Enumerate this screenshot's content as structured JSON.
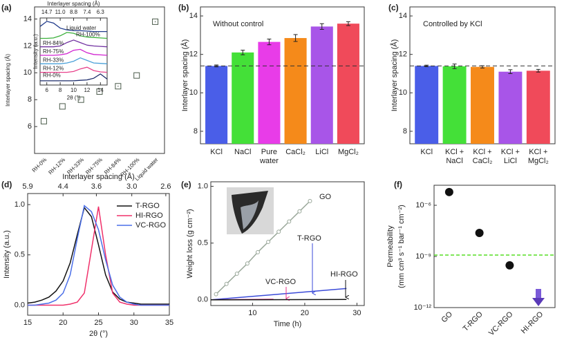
{
  "chart_data": [
    {
      "panel_label": "(a)",
      "type": "scatter",
      "ylabel": "Interlayer spacing (Å)",
      "categories": [
        "RH-0%",
        "RH-12%",
        "RH-33%",
        "RH-75%",
        "RH-84%",
        "RH-100%",
        "Liquid water"
      ],
      "values": [
        6.4,
        7.5,
        8.0,
        8.6,
        9.0,
        9.8,
        13.8
      ],
      "errors": [
        0.15,
        0.15,
        0.15,
        0.15,
        0.2,
        0.15,
        0.2
      ],
      "color": "#4a5a4a",
      "ylim": [
        4,
        14.9
      ],
      "yticks": [
        6,
        8,
        10,
        12,
        14
      ],
      "inset": {
        "type": "line",
        "xlabel": "2θ (°)",
        "ylabel": "Intensity (a.u.)",
        "x2label": "Interlayer spacing (Å)",
        "xlim": [
          5,
          15
        ],
        "xticks": [
          6,
          8,
          10,
          12,
          14
        ],
        "x2ticks": [
          {
            "value": 6,
            "label": "14.7"
          },
          {
            "value": 8,
            "label": "11.0"
          },
          {
            "value": 10,
            "label": "8.8"
          },
          {
            "value": 12,
            "label": "7.4"
          },
          {
            "value": 14,
            "label": "6.3"
          }
        ],
        "ylim": [
          0.5,
          8.4
        ],
        "x": [
          5,
          6,
          7,
          8,
          9,
          10,
          11,
          12,
          13,
          14,
          15
        ],
        "series": [
          {
            "name": "Liquid water",
            "color": "#1f3a8a",
            "values": [
              7.4,
              8.0,
              7.8,
              7.2,
              7.0,
              6.9,
              6.9,
              6.85,
              6.8,
              6.8,
              6.8
            ]
          },
          {
            "name": "RH-100%",
            "color": "#3ab03a",
            "values": [
              6.0,
              6.0,
              6.05,
              6.3,
              6.7,
              6.6,
              6.3,
              6.15,
              6.1,
              6.05,
              6.0
            ]
          },
          {
            "name": "RH-84%",
            "color": "#7030a0",
            "values": [
              5.0,
              5.0,
              5.0,
              5.1,
              5.5,
              5.8,
              5.5,
              5.2,
              5.1,
              5.05,
              5.0
            ]
          },
          {
            "name": "RH-75%",
            "color": "#d020d0",
            "values": [
              4.0,
              4.0,
              4.0,
              4.05,
              4.2,
              4.6,
              4.7,
              4.3,
              4.1,
              4.05,
              4.0
            ]
          },
          {
            "name": "RH-33%",
            "color": "#4aa0d8",
            "values": [
              3.0,
              3.0,
              3.0,
              3.0,
              3.1,
              3.3,
              3.7,
              3.4,
              3.1,
              3.05,
              3.0
            ]
          },
          {
            "name": "RH-12%",
            "color": "#e8408a",
            "values": [
              2.0,
              2.0,
              2.0,
              2.0,
              2.0,
              2.1,
              2.4,
              2.6,
              2.2,
              2.05,
              2.0
            ]
          },
          {
            "name": "RH-0%",
            "color": "#1a2a6a",
            "values": [
              1.0,
              1.0,
              1.0,
              1.0,
              1.0,
              1.0,
              1.05,
              1.1,
              1.3,
              1.8,
              1.2
            ]
          }
        ]
      }
    },
    {
      "panel_label": "(b)",
      "type": "bar",
      "annotation": "Without control",
      "ylabel": "Interlayer spacing (Å)",
      "categories": [
        [
          "KCl"
        ],
        [
          "NaCl"
        ],
        [
          "Pure",
          "water"
        ],
        [
          "CaCl₂"
        ],
        [
          "LiCl"
        ],
        [
          "MgCl₂"
        ]
      ],
      "values": [
        11.4,
        12.1,
        12.65,
        12.85,
        13.45,
        13.6
      ],
      "errors": [
        0.05,
        0.12,
        0.15,
        0.18,
        0.15,
        0.1
      ],
      "colors": [
        "#4a5ee8",
        "#44e038",
        "#e83ce8",
        "#f58a1a",
        "#a855e8",
        "#f04a5a"
      ],
      "reference_line": 11.4,
      "ylim": [
        7.35,
        14.47
      ],
      "yticks": [
        8,
        10,
        12,
        14
      ]
    },
    {
      "panel_label": "(c)",
      "type": "bar",
      "annotation": "Controlled by KCl",
      "ylabel": "Interlayer spacing (Å)",
      "categories": [
        [
          "KCl"
        ],
        [
          "KCl +",
          "NaCl"
        ],
        [
          "KCl +",
          "CaCl₂"
        ],
        [
          "KCl +",
          "LiCl"
        ],
        [
          "KCl +",
          "MgCl₂"
        ]
      ],
      "values": [
        11.4,
        11.38,
        11.35,
        11.1,
        11.15
      ],
      "errors": [
        0.04,
        0.12,
        0.06,
        0.1,
        0.07
      ],
      "colors": [
        "#4a5ee8",
        "#44e038",
        "#f58a1a",
        "#a855e8",
        "#f04a5a"
      ],
      "reference_line": 11.4,
      "ylim": [
        7.35,
        14.47
      ],
      "yticks": [
        8,
        10,
        12,
        14
      ]
    },
    {
      "panel_label": "(d)",
      "type": "line",
      "xlabel": "2θ (°)",
      "ylabel": "Intensity (a.u.)",
      "x2label": "Interlayer spacing (Å)",
      "xlim": [
        15,
        35
      ],
      "xticks": [
        15,
        20,
        25,
        30,
        35
      ],
      "x2ticks": [
        {
          "value": 15,
          "label": "5.9"
        },
        {
          "value": 20,
          "label": "4.4"
        },
        {
          "value": 24.7,
          "label": "3.6"
        },
        {
          "value": 29.7,
          "label": "3.0"
        },
        {
          "value": 34.5,
          "label": "2.6"
        }
      ],
      "ylim": [
        -0.1,
        1.11
      ],
      "yticks": [
        {
          "value": 0,
          "label": "0.0"
        },
        {
          "value": 0.5,
          "label": "0.5"
        },
        {
          "value": 1,
          "label": "1.0"
        }
      ],
      "x": [
        15,
        16,
        17,
        18,
        19,
        20,
        21,
        22,
        23,
        24,
        25,
        26,
        27,
        28,
        29,
        30,
        31,
        32,
        33,
        34,
        35
      ],
      "series": [
        {
          "name": "T-RGO",
          "color": "#111111",
          "values": [
            0.02,
            0.03,
            0.05,
            0.08,
            0.14,
            0.24,
            0.42,
            0.7,
            0.97,
            0.88,
            0.6,
            0.3,
            0.13,
            0.06,
            0.03,
            0.02,
            0.01,
            0.01,
            0.01,
            0.01,
            0.01
          ]
        },
        {
          "name": "HI-RGO",
          "color": "#f0306a",
          "values": [
            0,
            0,
            0,
            0,
            0,
            0,
            0.01,
            0.03,
            0.12,
            0.55,
            0.98,
            0.5,
            0.12,
            0.03,
            0.01,
            0,
            0,
            0,
            0,
            0,
            0
          ]
        },
        {
          "name": "VC-RGO",
          "color": "#4a6ee8",
          "values": [
            0,
            0,
            0.01,
            0.02,
            0.05,
            0.12,
            0.3,
            0.66,
            0.99,
            0.93,
            0.75,
            0.45,
            0.2,
            0.08,
            0.03,
            0.01,
            0,
            0,
            0,
            0,
            0
          ]
        }
      ],
      "legend": "upper right"
    },
    {
      "panel_label": "(e)",
      "type": "line",
      "xlabel": "Time (h)",
      "ylabel": "Weight loss (g cm⁻²)",
      "xlim": [
        2,
        31.4
      ],
      "xticks": [
        10,
        20,
        30
      ],
      "ylim": [
        -0.05,
        1.04
      ],
      "yticks": [
        {
          "value": 0,
          "label": "0.0"
        },
        {
          "value": 0.5,
          "label": "0.5"
        },
        {
          "value": 1,
          "label": "1.0"
        }
      ],
      "series": [
        {
          "name": "GO",
          "color": "#9aa89a",
          "x": [
            3,
            5,
            7,
            9,
            11,
            13,
            15,
            17,
            19,
            21
          ],
          "values": [
            0.05,
            0.14,
            0.23,
            0.32,
            0.42,
            0.51,
            0.6,
            0.69,
            0.78,
            0.87
          ]
        },
        {
          "name": "T-RGO",
          "color": "#3a4ad8",
          "x": [
            2,
            28
          ],
          "values": [
            0,
            0.1
          ]
        },
        {
          "name": "VC-RGO",
          "color": "#e8308a",
          "x": [
            2,
            14
          ],
          "values": [
            0,
            0.005
          ]
        },
        {
          "name": "HI-RGO",
          "color": "#111111",
          "x": [
            2,
            28
          ],
          "values": [
            0,
            0.003
          ]
        }
      ]
    },
    {
      "panel_label": "(f)",
      "type": "scatter",
      "ylabel": [
        "Permeability",
        "(mm cm³ s⁻¹ bar⁻¹ cm⁻²)"
      ],
      "categories": [
        "GO",
        "T-RGO",
        "VC-RGO",
        "HI-RGO"
      ],
      "values": [
        6e-06,
        2.4e-08,
        3e-10,
        null
      ],
      "color": "#111111",
      "log_scale": true,
      "ylim": [
        1e-12,
        1.5e-05
      ],
      "yticks": [
        {
          "value": 1e-12,
          "label": "10⁻¹²"
        },
        {
          "value": 1e-09,
          "label": "10⁻⁹"
        },
        {
          "value": 1e-06,
          "label": "10⁻⁶"
        }
      ],
      "reference_line": 1.2e-09,
      "reference_color": "#55dd22"
    }
  ]
}
